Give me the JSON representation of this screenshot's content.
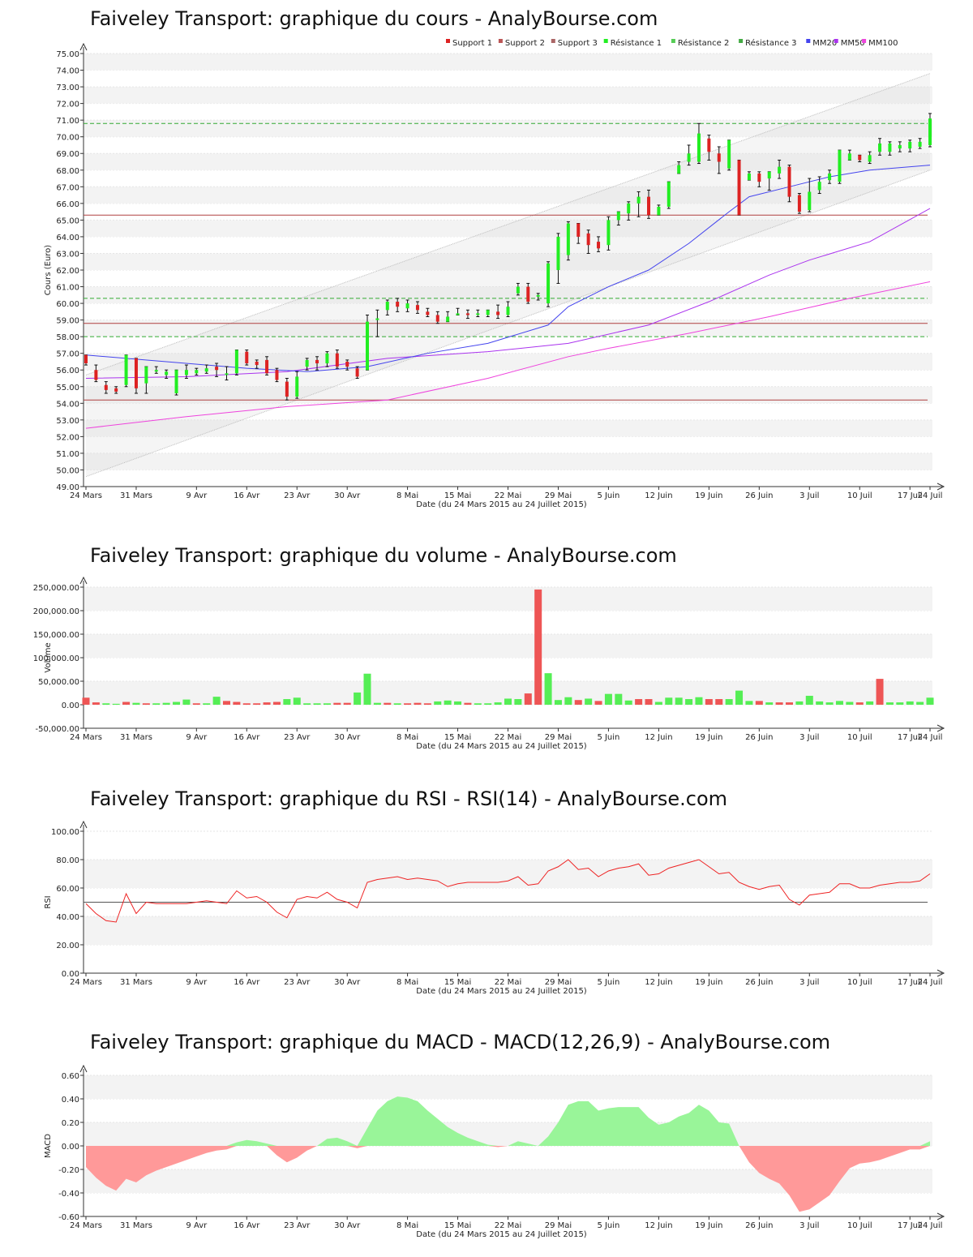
{
  "colors": {
    "up": "#22ee22",
    "down": "#dd2222",
    "wick": "#111111",
    "support": "#b04040",
    "resistance": "#33aa33",
    "mm20": "#4444ee",
    "mm50": "#aa33ee",
    "mm100": "#ee44dd",
    "channel": "#bbbbbb",
    "vol_up": "#55ee55",
    "vol_down": "#ee5555",
    "rsi": "#ee2222",
    "macd_pos": "#99f599",
    "macd_neg": "#ff9999"
  },
  "price_chart": {
    "title": "Faiveley Transport: graphique du cours - AnalyBourse.com",
    "ylabel": "Cours (Euro)",
    "xlabel": "Date (du 24 Mars 2015 au 24 Juillet 2015)",
    "x_ticks": [
      "24 Mars",
      "31 Mars",
      "9 Avr",
      "16 Avr",
      "23 Avr",
      "30 Avr",
      "8 Mai",
      "15 Mai",
      "22 Mai",
      "29 Mai",
      "5 Juin",
      "12 Juin",
      "19 Juin",
      "26 Juin",
      "3 Juil",
      "10 Juil",
      "17 Juil",
      "24 Juil"
    ],
    "y_ticks": [
      "49.00",
      "50.00",
      "51.00",
      "52.00",
      "53.00",
      "54.00",
      "55.00",
      "56.00",
      "57.00",
      "58.00",
      "59.00",
      "60.00",
      "61.00",
      "62.00",
      "63.00",
      "64.00",
      "65.00",
      "66.00",
      "67.00",
      "68.00",
      "69.00",
      "70.00",
      "71.00",
      "72.00",
      "73.00",
      "74.00",
      "75.00"
    ],
    "legend": [
      "Support 1",
      "Support 2",
      "Support 3",
      "Résistance 1",
      "Résistance 2",
      "Résistance 3",
      "MM20",
      "MM50",
      "MM100"
    ]
  },
  "volume_chart": {
    "title": "Faiveley Transport: graphique du volume - AnalyBourse.com",
    "ylabel": "Volume",
    "xlabel": "Date (du 24 Mars 2015 au 24 Juillet 2015)",
    "y_ticks": [
      "-50,000.00",
      "0.00",
      "50,000.00",
      "100,000.00",
      "150,000.00",
      "200,000.00",
      "250,000.00"
    ]
  },
  "rsi_chart": {
    "title": "Faiveley Transport: graphique du RSI - RSI(14) - AnalyBourse.com",
    "ylabel": "RSI",
    "xlabel": "Date (du 24 Mars 2015 au 24 Juillet 2015)",
    "y_ticks": [
      "0.00",
      "20.00",
      "40.00",
      "60.00",
      "80.00",
      "100.00"
    ]
  },
  "macd_chart": {
    "title": "Faiveley Transport: graphique du MACD - MACD(12,26,9) - AnalyBourse.com",
    "ylabel": "MACD",
    "xlabel": "Date (du 24 Mars 2015 au 24 Juillet 2015)",
    "y_ticks": [
      "-0.60",
      "-0.40",
      "-0.20",
      "0.00",
      "0.20",
      "0.40",
      "0.60"
    ]
  },
  "chart_data": [
    {
      "type": "candlestick",
      "title": "Faiveley Transport: graphique du cours - AnalyBourse.com",
      "ylim": [
        49,
        75
      ],
      "x_ticks": [
        "24 Mars",
        "31 Mars",
        "9 Avr",
        "16 Avr",
        "23 Avr",
        "30 Avr",
        "8 Mai",
        "15 Mai",
        "22 Mai",
        "29 Mai",
        "5 Juin",
        "12 Juin",
        "19 Juin",
        "26 Juin",
        "3 Juil",
        "10 Juil",
        "17 Juil",
        "24 Juil"
      ],
      "candles": [
        [
          56.9,
          56.4,
          56.9,
          56.3
        ],
        [
          56.0,
          55.4,
          56.3,
          55.3
        ],
        [
          55.1,
          54.8,
          55.3,
          54.6
        ],
        [
          54.9,
          54.7,
          55.0,
          54.6
        ],
        [
          55.1,
          56.9,
          56.9,
          55.0
        ],
        [
          56.7,
          54.9,
          56.7,
          54.6
        ],
        [
          55.2,
          56.2,
          56.2,
          54.6
        ],
        [
          56.0,
          56.0,
          56.2,
          55.8
        ],
        [
          55.7,
          55.9,
          56.0,
          55.5
        ],
        [
          54.6,
          56.0,
          56.0,
          54.5
        ],
        [
          55.7,
          56.0,
          56.3,
          55.5
        ],
        [
          55.8,
          56.0,
          56.1,
          55.7
        ],
        [
          55.9,
          56.1,
          56.3,
          55.8
        ],
        [
          56.2,
          56.0,
          56.4,
          55.6
        ],
        [
          55.8,
          55.8,
          56.2,
          55.4
        ],
        [
          55.8,
          57.2,
          57.2,
          55.7
        ],
        [
          57.1,
          56.4,
          57.2,
          56.3
        ],
        [
          56.5,
          56.3,
          56.6,
          56.1
        ],
        [
          56.6,
          55.8,
          56.8,
          55.7
        ],
        [
          56.0,
          55.4,
          56.1,
          55.3
        ],
        [
          55.3,
          54.4,
          55.5,
          54.2
        ],
        [
          54.4,
          55.6,
          55.9,
          54.3
        ],
        [
          56.2,
          56.6,
          56.7,
          56.0
        ],
        [
          56.6,
          56.4,
          56.8,
          56.0
        ],
        [
          56.4,
          57.0,
          57.1,
          56.2
        ],
        [
          57.0,
          56.2,
          57.2,
          56.1
        ],
        [
          56.5,
          56.2,
          56.6,
          56.0
        ],
        [
          56.1,
          55.6,
          56.2,
          55.5
        ],
        [
          56.0,
          58.9,
          59.3,
          56.0
        ],
        [
          59.1,
          59.1,
          59.6,
          58.0
        ],
        [
          59.6,
          60.1,
          60.2,
          59.3
        ],
        [
          60.1,
          59.8,
          60.3,
          59.5
        ],
        [
          59.7,
          60.0,
          60.2,
          59.5
        ],
        [
          59.9,
          59.6,
          60.1,
          59.4
        ],
        [
          59.5,
          59.3,
          59.7,
          59.2
        ],
        [
          59.3,
          58.9,
          59.5,
          58.8
        ],
        [
          58.9,
          59.2,
          59.5,
          58.9
        ],
        [
          59.3,
          59.4,
          59.7,
          59.3
        ],
        [
          59.4,
          59.3,
          59.6,
          59.1
        ],
        [
          59.4,
          59.4,
          59.6,
          59.2
        ],
        [
          59.3,
          59.6,
          59.6,
          59.2
        ],
        [
          59.5,
          59.3,
          59.9,
          59.1
        ],
        [
          59.3,
          59.8,
          60.1,
          59.2
        ],
        [
          60.6,
          61.0,
          61.2,
          60.5
        ],
        [
          61.0,
          60.1,
          61.2,
          60.0
        ],
        [
          60.4,
          60.5,
          60.6,
          60.2
        ],
        [
          60.0,
          62.4,
          62.5,
          59.8
        ],
        [
          62.0,
          64.0,
          64.2,
          61.2
        ],
        [
          62.9,
          64.8,
          64.9,
          62.6
        ],
        [
          64.8,
          64.0,
          64.8,
          63.6
        ],
        [
          64.2,
          63.5,
          64.4,
          63.0
        ],
        [
          63.7,
          63.3,
          64.0,
          63.1
        ],
        [
          63.5,
          65.0,
          65.2,
          63.2
        ],
        [
          65.0,
          65.5,
          65.5,
          64.7
        ],
        [
          65.4,
          66.0,
          66.1,
          65.0
        ],
        [
          66.0,
          66.4,
          66.7,
          65.2
        ],
        [
          66.4,
          65.3,
          66.8,
          65.1
        ],
        [
          65.3,
          65.8,
          65.9,
          65.3
        ],
        [
          65.8,
          67.3,
          67.3,
          65.7
        ],
        [
          67.8,
          68.3,
          68.5,
          67.8
        ],
        [
          68.5,
          69.0,
          69.5,
          68.3
        ],
        [
          68.5,
          70.2,
          70.8,
          68.4
        ],
        [
          69.9,
          69.1,
          70.1,
          68.6
        ],
        [
          69.0,
          68.5,
          69.4,
          67.8
        ],
        [
          68.1,
          69.8,
          69.8,
          68.0
        ],
        [
          68.6,
          65.3,
          68.6,
          65.3
        ],
        [
          67.4,
          67.8,
          67.9,
          67.4
        ],
        [
          67.8,
          67.3,
          67.9,
          67.0
        ],
        [
          67.5,
          67.9,
          67.9,
          66.8
        ],
        [
          67.8,
          68.2,
          68.6,
          67.5
        ],
        [
          68.2,
          66.4,
          68.3,
          66.1
        ],
        [
          66.5,
          65.5,
          66.6,
          65.4
        ],
        [
          65.6,
          66.7,
          67.5,
          65.5
        ],
        [
          66.8,
          67.3,
          67.6,
          66.6
        ],
        [
          67.4,
          67.8,
          68.0,
          67.2
        ],
        [
          67.3,
          69.2,
          69.2,
          67.2
        ],
        [
          68.6,
          69.0,
          69.2,
          68.6
        ],
        [
          68.9,
          68.6,
          68.9,
          68.5
        ],
        [
          68.5,
          68.9,
          69.1,
          68.4
        ],
        [
          69.1,
          69.6,
          69.9,
          68.9
        ],
        [
          69.1,
          69.6,
          69.7,
          68.9
        ],
        [
          69.3,
          69.5,
          69.7,
          69.1
        ],
        [
          69.3,
          69.7,
          69.8,
          69.1
        ],
        [
          69.4,
          69.7,
          69.9,
          69.3
        ],
        [
          69.5,
          71.1,
          71.4,
          69.4
        ]
      ],
      "support": [
        65.3,
        58.8,
        54.2
      ],
      "resistance": [
        70.8,
        60.3,
        58.0
      ],
      "channel_upper": [
        [
          0,
          55.7
        ],
        [
          84,
          73.8
        ]
      ],
      "channel_lower": [
        [
          0,
          49.6
        ],
        [
          84,
          68.0
        ]
      ],
      "mm20": [
        [
          0,
          56.9
        ],
        [
          8,
          56.5
        ],
        [
          16,
          56.1
        ],
        [
          22,
          55.9
        ],
        [
          28,
          56.2
        ],
        [
          34,
          57.0
        ],
        [
          40,
          57.6
        ],
        [
          46,
          58.7
        ],
        [
          48,
          59.8
        ],
        [
          52,
          61.0
        ],
        [
          56,
          62.0
        ],
        [
          60,
          63.6
        ],
        [
          64,
          65.5
        ],
        [
          66,
          66.4
        ],
        [
          70,
          67.0
        ],
        [
          74,
          67.6
        ],
        [
          78,
          68.0
        ],
        [
          84,
          68.3
        ]
      ],
      "mm50": [
        [
          0,
          55.5
        ],
        [
          10,
          55.6
        ],
        [
          20,
          55.9
        ],
        [
          30,
          56.7
        ],
        [
          40,
          57.1
        ],
        [
          48,
          57.6
        ],
        [
          56,
          58.7
        ],
        [
          62,
          60.1
        ],
        [
          68,
          61.7
        ],
        [
          72,
          62.6
        ],
        [
          78,
          63.7
        ],
        [
          84,
          65.7
        ]
      ],
      "mm100": [
        [
          0,
          52.5
        ],
        [
          10,
          53.2
        ],
        [
          20,
          53.8
        ],
        [
          30,
          54.2
        ],
        [
          40,
          55.5
        ],
        [
          48,
          56.8
        ],
        [
          52,
          57.3
        ],
        [
          60,
          58.2
        ],
        [
          68,
          59.2
        ],
        [
          76,
          60.3
        ],
        [
          84,
          61.3
        ]
      ]
    },
    {
      "type": "bar",
      "title": "Faiveley Transport: graphique du volume - AnalyBourse.com",
      "ylim": [
        -50000,
        250000
      ],
      "values": [
        15000,
        5000,
        3000,
        2000,
        6000,
        4000,
        3000,
        3000,
        4000,
        6000,
        11000,
        3000,
        3000,
        17000,
        8000,
        6000,
        3000,
        3000,
        5000,
        6000,
        12000,
        15000,
        3000,
        3000,
        3000,
        4000,
        4000,
        26000,
        66000,
        4000,
        4000,
        3000,
        3000,
        4000,
        3000,
        7000,
        9000,
        7000,
        4000,
        3000,
        3000,
        5000,
        13000,
        12000,
        24000,
        245000,
        67000,
        10000,
        16000,
        10000,
        13000,
        8000,
        23000,
        23000,
        9000,
        12000,
        12000,
        6000,
        15000,
        15000,
        12000,
        16000,
        12000,
        12000,
        12000,
        30000,
        8000,
        8000,
        5000,
        5000,
        5000,
        7000,
        19000,
        7000,
        5000,
        8000,
        6000,
        5000,
        7000,
        55000,
        5000,
        5000,
        7000,
        6000,
        15000
      ],
      "up": [
        0,
        0,
        1,
        1,
        0,
        1,
        0,
        1,
        1,
        1,
        1,
        0,
        1,
        1,
        0,
        0,
        0,
        0,
        0,
        0,
        1,
        1,
        1,
        1,
        1,
        0,
        0,
        1,
        1,
        1,
        0,
        1,
        0,
        0,
        0,
        1,
        1,
        1,
        0,
        1,
        1,
        1,
        1,
        1,
        0,
        0,
        1,
        1,
        1,
        0,
        1,
        0,
        1,
        1,
        1,
        0,
        0,
        1,
        1,
        1,
        1,
        1,
        0,
        0,
        1,
        1,
        1,
        0,
        1,
        0,
        0,
        1,
        1,
        1,
        1,
        1,
        1,
        0,
        1,
        0,
        1,
        1,
        1,
        1,
        1
      ],
      "ylabel": "Volume"
    },
    {
      "type": "line",
      "title": "Faiveley Transport: graphique du RSI - RSI(14) - AnalyBourse.com",
      "ylim": [
        0,
        100
      ],
      "reference_line": 50,
      "values": [
        49,
        42,
        37,
        36,
        56,
        42,
        50,
        49,
        49,
        49,
        49,
        50,
        51,
        50,
        49,
        58,
        53,
        54,
        50,
        43,
        39,
        52,
        54,
        53,
        57,
        52,
        50,
        46,
        64,
        66,
        67,
        68,
        66,
        67,
        66,
        65,
        61,
        63,
        64,
        64,
        64,
        64,
        65,
        68,
        62,
        63,
        72,
        75,
        80,
        73,
        74,
        68,
        72,
        74,
        75,
        77,
        69,
        70,
        74,
        76,
        78,
        80,
        75,
        70,
        71,
        64,
        61,
        59,
        61,
        62,
        52,
        48,
        55,
        56,
        57,
        63,
        63,
        60,
        60,
        62,
        63,
        64,
        64,
        65,
        70
      ]
    },
    {
      "type": "area",
      "title": "Faiveley Transport: graphique du MACD - MACD(12,26,9) - AnalyBourse.com",
      "ylim": [
        -0.6,
        0.6
      ],
      "values": [
        -0.18,
        -0.27,
        -0.34,
        -0.38,
        -0.28,
        -0.31,
        -0.25,
        -0.21,
        -0.18,
        -0.15,
        -0.12,
        -0.09,
        -0.06,
        -0.04,
        -0.03,
        0.03,
        0.05,
        0.04,
        0.02,
        -0.08,
        -0.14,
        -0.1,
        -0.04,
        0.0,
        0.06,
        0.07,
        0.04,
        -0.02,
        0.15,
        0.3,
        0.38,
        0.42,
        0.41,
        0.38,
        0.3,
        0.23,
        0.16,
        0.11,
        0.07,
        0.04,
        0.01,
        -0.01,
        0.0,
        0.04,
        0.02,
        0.0,
        0.08,
        0.2,
        0.35,
        0.38,
        0.38,
        0.3,
        0.32,
        0.33,
        0.33,
        0.33,
        0.24,
        0.18,
        0.2,
        0.25,
        0.28,
        0.35,
        0.3,
        0.2,
        0.19,
        0.0,
        -0.14,
        -0.23,
        -0.28,
        -0.32,
        -0.42,
        -0.56,
        -0.54,
        -0.48,
        -0.42,
        -0.3,
        -0.19,
        -0.15,
        -0.14,
        -0.12,
        -0.09,
        -0.06,
        -0.03,
        -0.03,
        0.04
      ]
    }
  ]
}
